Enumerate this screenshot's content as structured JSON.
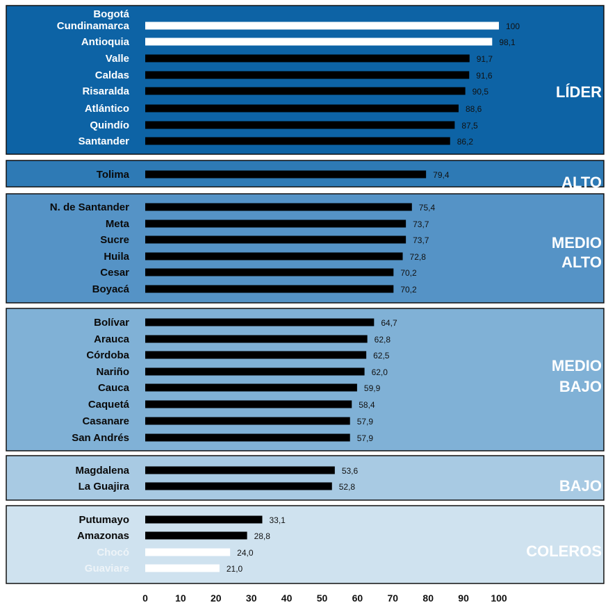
{
  "chart_data": {
    "type": "bar",
    "orientation": "horizontal",
    "xlim": [
      0,
      100
    ],
    "x_ticks": [
      "0",
      "10",
      "20",
      "30",
      "40",
      "50",
      "60",
      "70",
      "80",
      "90",
      "100"
    ],
    "colors": {
      "bar_default": "#000000",
      "bar_highlight": "#ffffff",
      "label_dark": "#0a0a0a",
      "label_light": "#ffffff",
      "label_faded": "#eef4f8"
    },
    "groups": [
      {
        "name": "LÍDER",
        "background": "#0d63a5",
        "name_color": "#ffffff",
        "label_color": "#ffffff",
        "items": [
          {
            "label": [
              "Bogotá",
              "Cundinamarca"
            ],
            "value": 100,
            "display": "100",
            "bar": "highlight"
          },
          {
            "label": [
              "Antioquia"
            ],
            "value": 98.1,
            "display": "98,1",
            "bar": "highlight"
          },
          {
            "label": [
              "Valle"
            ],
            "value": 91.7,
            "display": "91,7",
            "bar": "default"
          },
          {
            "label": [
              "Caldas"
            ],
            "value": 91.6,
            "display": "91,6",
            "bar": "default"
          },
          {
            "label": [
              "Risaralda"
            ],
            "value": 90.5,
            "display": "90,5",
            "bar": "default"
          },
          {
            "label": [
              "Atlántico"
            ],
            "value": 88.6,
            "display": "88,6",
            "bar": "default"
          },
          {
            "label": [
              "Quindío"
            ],
            "value": 87.5,
            "display": "87,5",
            "bar": "default"
          },
          {
            "label": [
              "Santander"
            ],
            "value": 86.2,
            "display": "86,2",
            "bar": "default"
          }
        ]
      },
      {
        "name": "ALTO",
        "background": "#2e7ab5",
        "name_color": "#ffffff",
        "label_color": "#0a0a0a",
        "items": [
          {
            "label": [
              "Tolima"
            ],
            "value": 79.4,
            "display": "79,4",
            "bar": "default"
          }
        ]
      },
      {
        "name": "MEDIO\nALTO",
        "background": "#5593c6",
        "name_color": "#ffffff",
        "label_color": "#0a0a0a",
        "items": [
          {
            "label": [
              "N. de Santander"
            ],
            "value": 75.4,
            "display": "75,4",
            "bar": "default"
          },
          {
            "label": [
              "Meta"
            ],
            "value": 73.7,
            "display": "73,7",
            "bar": "default"
          },
          {
            "label": [
              "Sucre"
            ],
            "value": 73.7,
            "display": "73,7",
            "bar": "default"
          },
          {
            "label": [
              "Huila"
            ],
            "value": 72.8,
            "display": "72,8",
            "bar": "default"
          },
          {
            "label": [
              "Cesar"
            ],
            "value": 70.2,
            "display": "70,2",
            "bar": "default"
          },
          {
            "label": [
              "Boyacá"
            ],
            "value": 70.2,
            "display": "70,2",
            "bar": "default"
          }
        ]
      },
      {
        "name": "MEDIO\nBAJO",
        "background": "#80b1d6",
        "name_color": "#ffffff",
        "label_color": "#0a0a0a",
        "items": [
          {
            "label": [
              "Bolívar"
            ],
            "value": 64.7,
            "display": "64,7",
            "bar": "default"
          },
          {
            "label": [
              "Arauca"
            ],
            "value": 62.8,
            "display": "62,8",
            "bar": "default"
          },
          {
            "label": [
              "Córdoba"
            ],
            "value": 62.5,
            "display": "62,5",
            "bar": "default"
          },
          {
            "label": [
              "Nariño"
            ],
            "value": 62.0,
            "display": "62,0",
            "bar": "default"
          },
          {
            "label": [
              "Cauca"
            ],
            "value": 59.9,
            "display": "59,9",
            "bar": "default"
          },
          {
            "label": [
              "Caquetá"
            ],
            "value": 58.4,
            "display": "58,4",
            "bar": "default"
          },
          {
            "label": [
              "Casanare"
            ],
            "value": 57.9,
            "display": "57,9",
            "bar": "default"
          },
          {
            "label": [
              "San Andrés"
            ],
            "value": 57.9,
            "display": "57,9",
            "bar": "default"
          }
        ]
      },
      {
        "name": "BAJO",
        "background": "#a8cae3",
        "name_color": "#ffffff",
        "label_color": "#0a0a0a",
        "items": [
          {
            "label": [
              "Magdalena"
            ],
            "value": 53.6,
            "display": "53,6",
            "bar": "default"
          },
          {
            "label": [
              "La Guajira"
            ],
            "value": 52.8,
            "display": "52,8",
            "bar": "default"
          }
        ]
      },
      {
        "name": "COLEROS",
        "background": "#cfe2ef",
        "name_color": "#ffffff",
        "label_color": "#0a0a0a",
        "items": [
          {
            "label": [
              "Putumayo"
            ],
            "value": 33.1,
            "display": "33,1",
            "bar": "default"
          },
          {
            "label": [
              "Amazonas"
            ],
            "value": 28.8,
            "display": "28,8",
            "bar": "default"
          },
          {
            "label": [
              "Chocó"
            ],
            "value": 24.0,
            "display": "24,0",
            "bar": "highlight",
            "label_tone": "faded"
          },
          {
            "label": [
              "Guaviare"
            ],
            "value": 21.0,
            "display": "21,0",
            "bar": "highlight",
            "label_tone": "faded"
          }
        ]
      }
    ]
  }
}
